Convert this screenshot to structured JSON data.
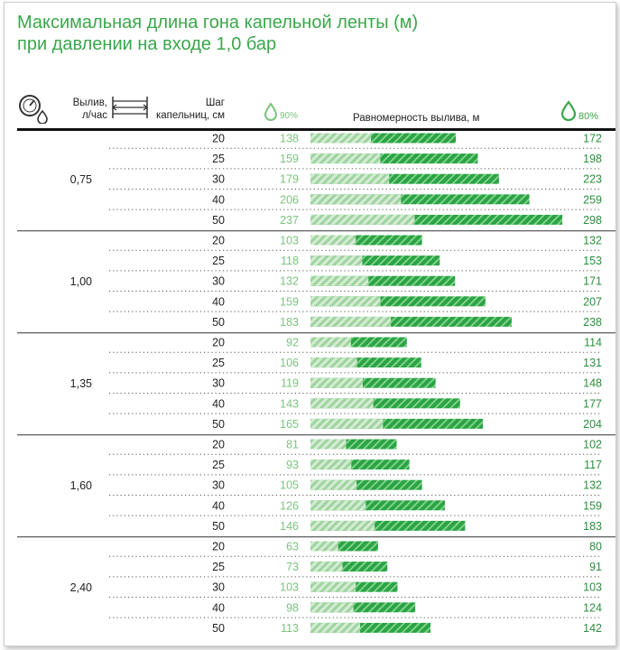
{
  "title": "Максимальная длина гона капельной ленты (м)\nпри давлении на входе 1,0 бар",
  "header": {
    "flow_label": "Вылив,\nл/час",
    "step_label": "Шаг\nкапельниц, см",
    "p90_label": "90%",
    "uniformity_label": "Равномерность вылива, м",
    "p80_label": "80%"
  },
  "icons": [
    "gauge-drop-icon",
    "drip-spacing-icon",
    "drop-icon"
  ],
  "colors": {
    "light_green": "#7cc27f",
    "dark_green": "#2aa343",
    "title_green": "#3aa74a"
  },
  "chart_data": {
    "type": "bar",
    "x_scale_max": 300,
    "groups": [
      {
        "flow": "0,75",
        "rows": [
          {
            "step": 20,
            "p90": 138,
            "p80": 172
          },
          {
            "step": 25,
            "p90": 159,
            "p80": 198
          },
          {
            "step": 30,
            "p90": 179,
            "p80": 223
          },
          {
            "step": 40,
            "p90": 206,
            "p80": 259
          },
          {
            "step": 50,
            "p90": 237,
            "p80": 298
          }
        ]
      },
      {
        "flow": "1,00",
        "rows": [
          {
            "step": 20,
            "p90": 103,
            "p80": 132
          },
          {
            "step": 25,
            "p90": 118,
            "p80": 153
          },
          {
            "step": 30,
            "p90": 132,
            "p80": 171
          },
          {
            "step": 40,
            "p90": 159,
            "p80": 207
          },
          {
            "step": 50,
            "p90": 183,
            "p80": 238
          }
        ]
      },
      {
        "flow": "1,35",
        "rows": [
          {
            "step": 20,
            "p90": 92,
            "p80": 114
          },
          {
            "step": 25,
            "p90": 106,
            "p80": 131
          },
          {
            "step": 30,
            "p90": 119,
            "p80": 148
          },
          {
            "step": 40,
            "p90": 143,
            "p80": 177
          },
          {
            "step": 50,
            "p90": 165,
            "p80": 204
          }
        ]
      },
      {
        "flow": "1,60",
        "rows": [
          {
            "step": 20,
            "p90": 81,
            "p80": 102
          },
          {
            "step": 25,
            "p90": 93,
            "p80": 117
          },
          {
            "step": 30,
            "p90": 105,
            "p80": 132
          },
          {
            "step": 40,
            "p90": 126,
            "p80": 159
          },
          {
            "step": 50,
            "p90": 146,
            "p80": 183
          }
        ]
      },
      {
        "flow": "2,40",
        "rows": [
          {
            "step": 20,
            "p90": 63,
            "p80": 80
          },
          {
            "step": 25,
            "p90": 73,
            "p80": 91
          },
          {
            "step": 30,
            "p90": 103,
            "p80": 103
          },
          {
            "step": 40,
            "p90": 98,
            "p80": 124
          },
          {
            "step": 50,
            "p90": 113,
            "p80": 142
          }
        ]
      }
    ]
  }
}
